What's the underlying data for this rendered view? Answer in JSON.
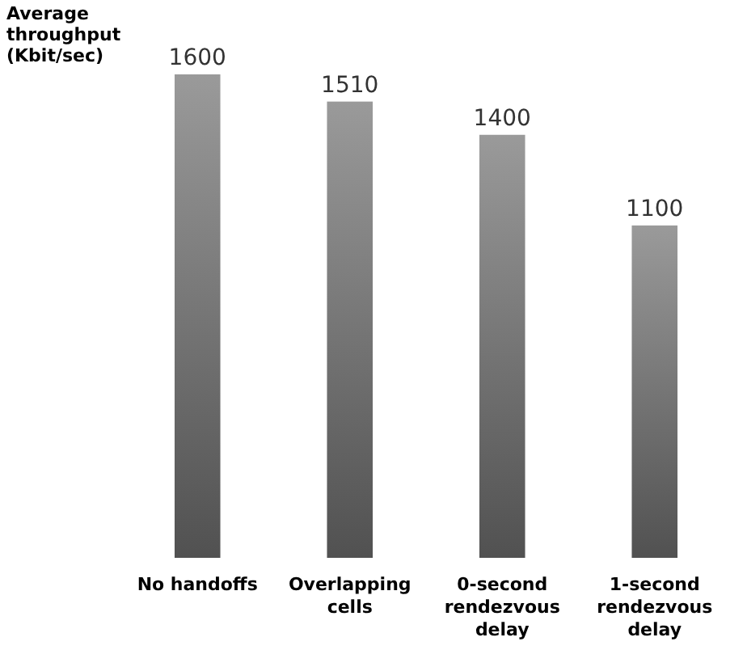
{
  "chart_data": {
    "type": "bar",
    "ylabel": "Average throughput (Kbit/sec)",
    "categories": [
      "No handoffs",
      "Overlapping cells",
      "0-second rendezvous delay",
      "1-second rendezvous delay"
    ],
    "values": [
      1600,
      1510,
      1400,
      1100
    ],
    "color": "#707070",
    "data_labels": true
  }
}
